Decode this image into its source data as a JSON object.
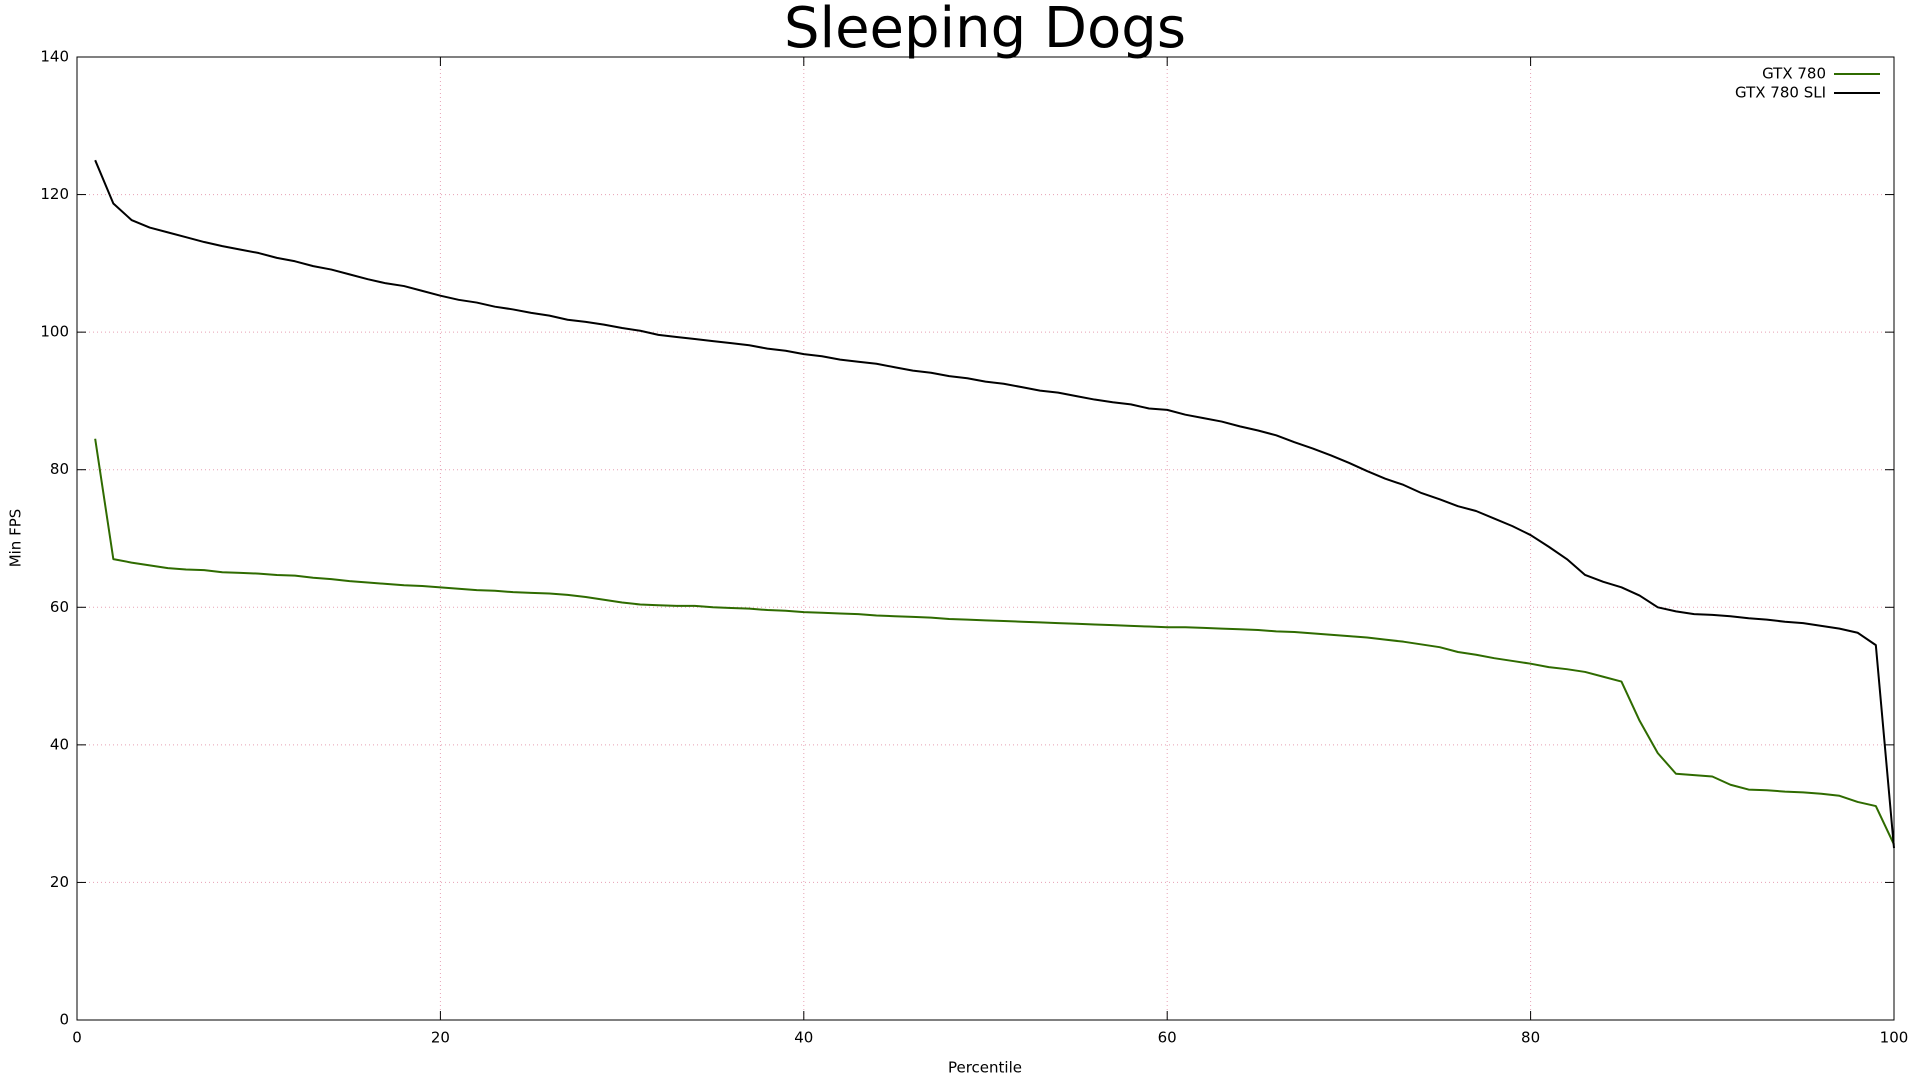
{
  "chart_data": {
    "type": "line",
    "title": "Sleeping Dogs",
    "xlabel": "Percentile",
    "ylabel": "Min FPS",
    "x": [
      1,
      2,
      3,
      4,
      5,
      6,
      7,
      8,
      9,
      10,
      11,
      12,
      13,
      14,
      15,
      16,
      17,
      18,
      19,
      20,
      21,
      22,
      23,
      24,
      25,
      26,
      27,
      28,
      29,
      30,
      31,
      32,
      33,
      34,
      35,
      36,
      37,
      38,
      39,
      40,
      41,
      42,
      43,
      44,
      45,
      46,
      47,
      48,
      49,
      50,
      51,
      52,
      53,
      54,
      55,
      56,
      57,
      58,
      59,
      60,
      61,
      62,
      63,
      64,
      65,
      66,
      67,
      68,
      69,
      70,
      71,
      72,
      73,
      74,
      75,
      76,
      77,
      78,
      79,
      80,
      81,
      82,
      83,
      84,
      85,
      86,
      87,
      88,
      89,
      90,
      91,
      92,
      93,
      94,
      95,
      96,
      97,
      98,
      99,
      100
    ],
    "series": [
      {
        "name": "GTX 780",
        "color": "#2f6b00",
        "values": [
          84.5,
          67,
          66.5,
          66.1,
          65.7,
          65.5,
          65.4,
          65.1,
          65,
          64.9,
          64.7,
          64.6,
          64.3,
          64.1,
          63.8,
          63.6,
          63.4,
          63.2,
          63.1,
          62.9,
          62.7,
          62.5,
          62.4,
          62.2,
          62.1,
          62,
          61.8,
          61.5,
          61.1,
          60.7,
          60.4,
          60.3,
          60.2,
          60.2,
          60,
          59.9,
          59.8,
          59.6,
          59.5,
          59.3,
          59.2,
          59.1,
          59,
          58.8,
          58.7,
          58.6,
          58.5,
          58.3,
          58.2,
          58.1,
          58,
          57.9,
          57.8,
          57.7,
          57.6,
          57.5,
          57.4,
          57.3,
          57.2,
          57.1,
          57.1,
          57,
          56.9,
          56.8,
          56.7,
          56.5,
          56.4,
          56.2,
          56,
          55.8,
          55.6,
          55.3,
          55,
          54.6,
          54.2,
          53.5,
          53.1,
          52.6,
          52.2,
          51.8,
          51.3,
          51,
          50.6,
          49.9,
          49.2,
          43.5,
          38.8,
          35.8,
          35.6,
          35.4,
          34.2,
          33.5,
          33.4,
          33.2,
          33.1,
          32.9,
          32.6,
          31.7,
          31.1,
          25.5
        ]
      },
      {
        "name": "GTX 780 SLI",
        "color": "#000000",
        "values": [
          125,
          118.7,
          116.3,
          115.2,
          114.5,
          113.8,
          113.1,
          112.5,
          112,
          111.5,
          110.8,
          110.3,
          109.6,
          109.1,
          108.4,
          107.7,
          107.1,
          106.7,
          106,
          105.3,
          104.7,
          104.3,
          103.7,
          103.3,
          102.8,
          102.4,
          101.8,
          101.5,
          101.1,
          100.6,
          100.2,
          99.6,
          99.3,
          99,
          98.7,
          98.4,
          98.1,
          97.6,
          97.3,
          96.8,
          96.5,
          96,
          95.7,
          95.4,
          94.9,
          94.4,
          94.1,
          93.6,
          93.3,
          92.8,
          92.5,
          92,
          91.5,
          91.2,
          90.7,
          90.2,
          89.8,
          89.5,
          88.9,
          88.7,
          88,
          87.5,
          87,
          86.3,
          85.7,
          85,
          84,
          83.1,
          82.1,
          81,
          79.8,
          78.7,
          77.8,
          76.6,
          75.7,
          74.7,
          74,
          72.9,
          71.8,
          70.5,
          68.8,
          67,
          64.7,
          63.7,
          62.9,
          61.7,
          60,
          59.4,
          59,
          58.9,
          58.7,
          58.4,
          58.2,
          57.9,
          57.7,
          57.3,
          56.9,
          56.3,
          54.5,
          25
        ]
      }
    ],
    "xlim": [
      0,
      100
    ],
    "xticks": [
      0,
      20,
      40,
      60,
      80,
      100
    ],
    "ylim": [
      0,
      140
    ],
    "yticks": [
      0,
      20,
      40,
      60,
      80,
      100,
      120,
      140
    ],
    "grid": true,
    "legend": "top-right"
  }
}
